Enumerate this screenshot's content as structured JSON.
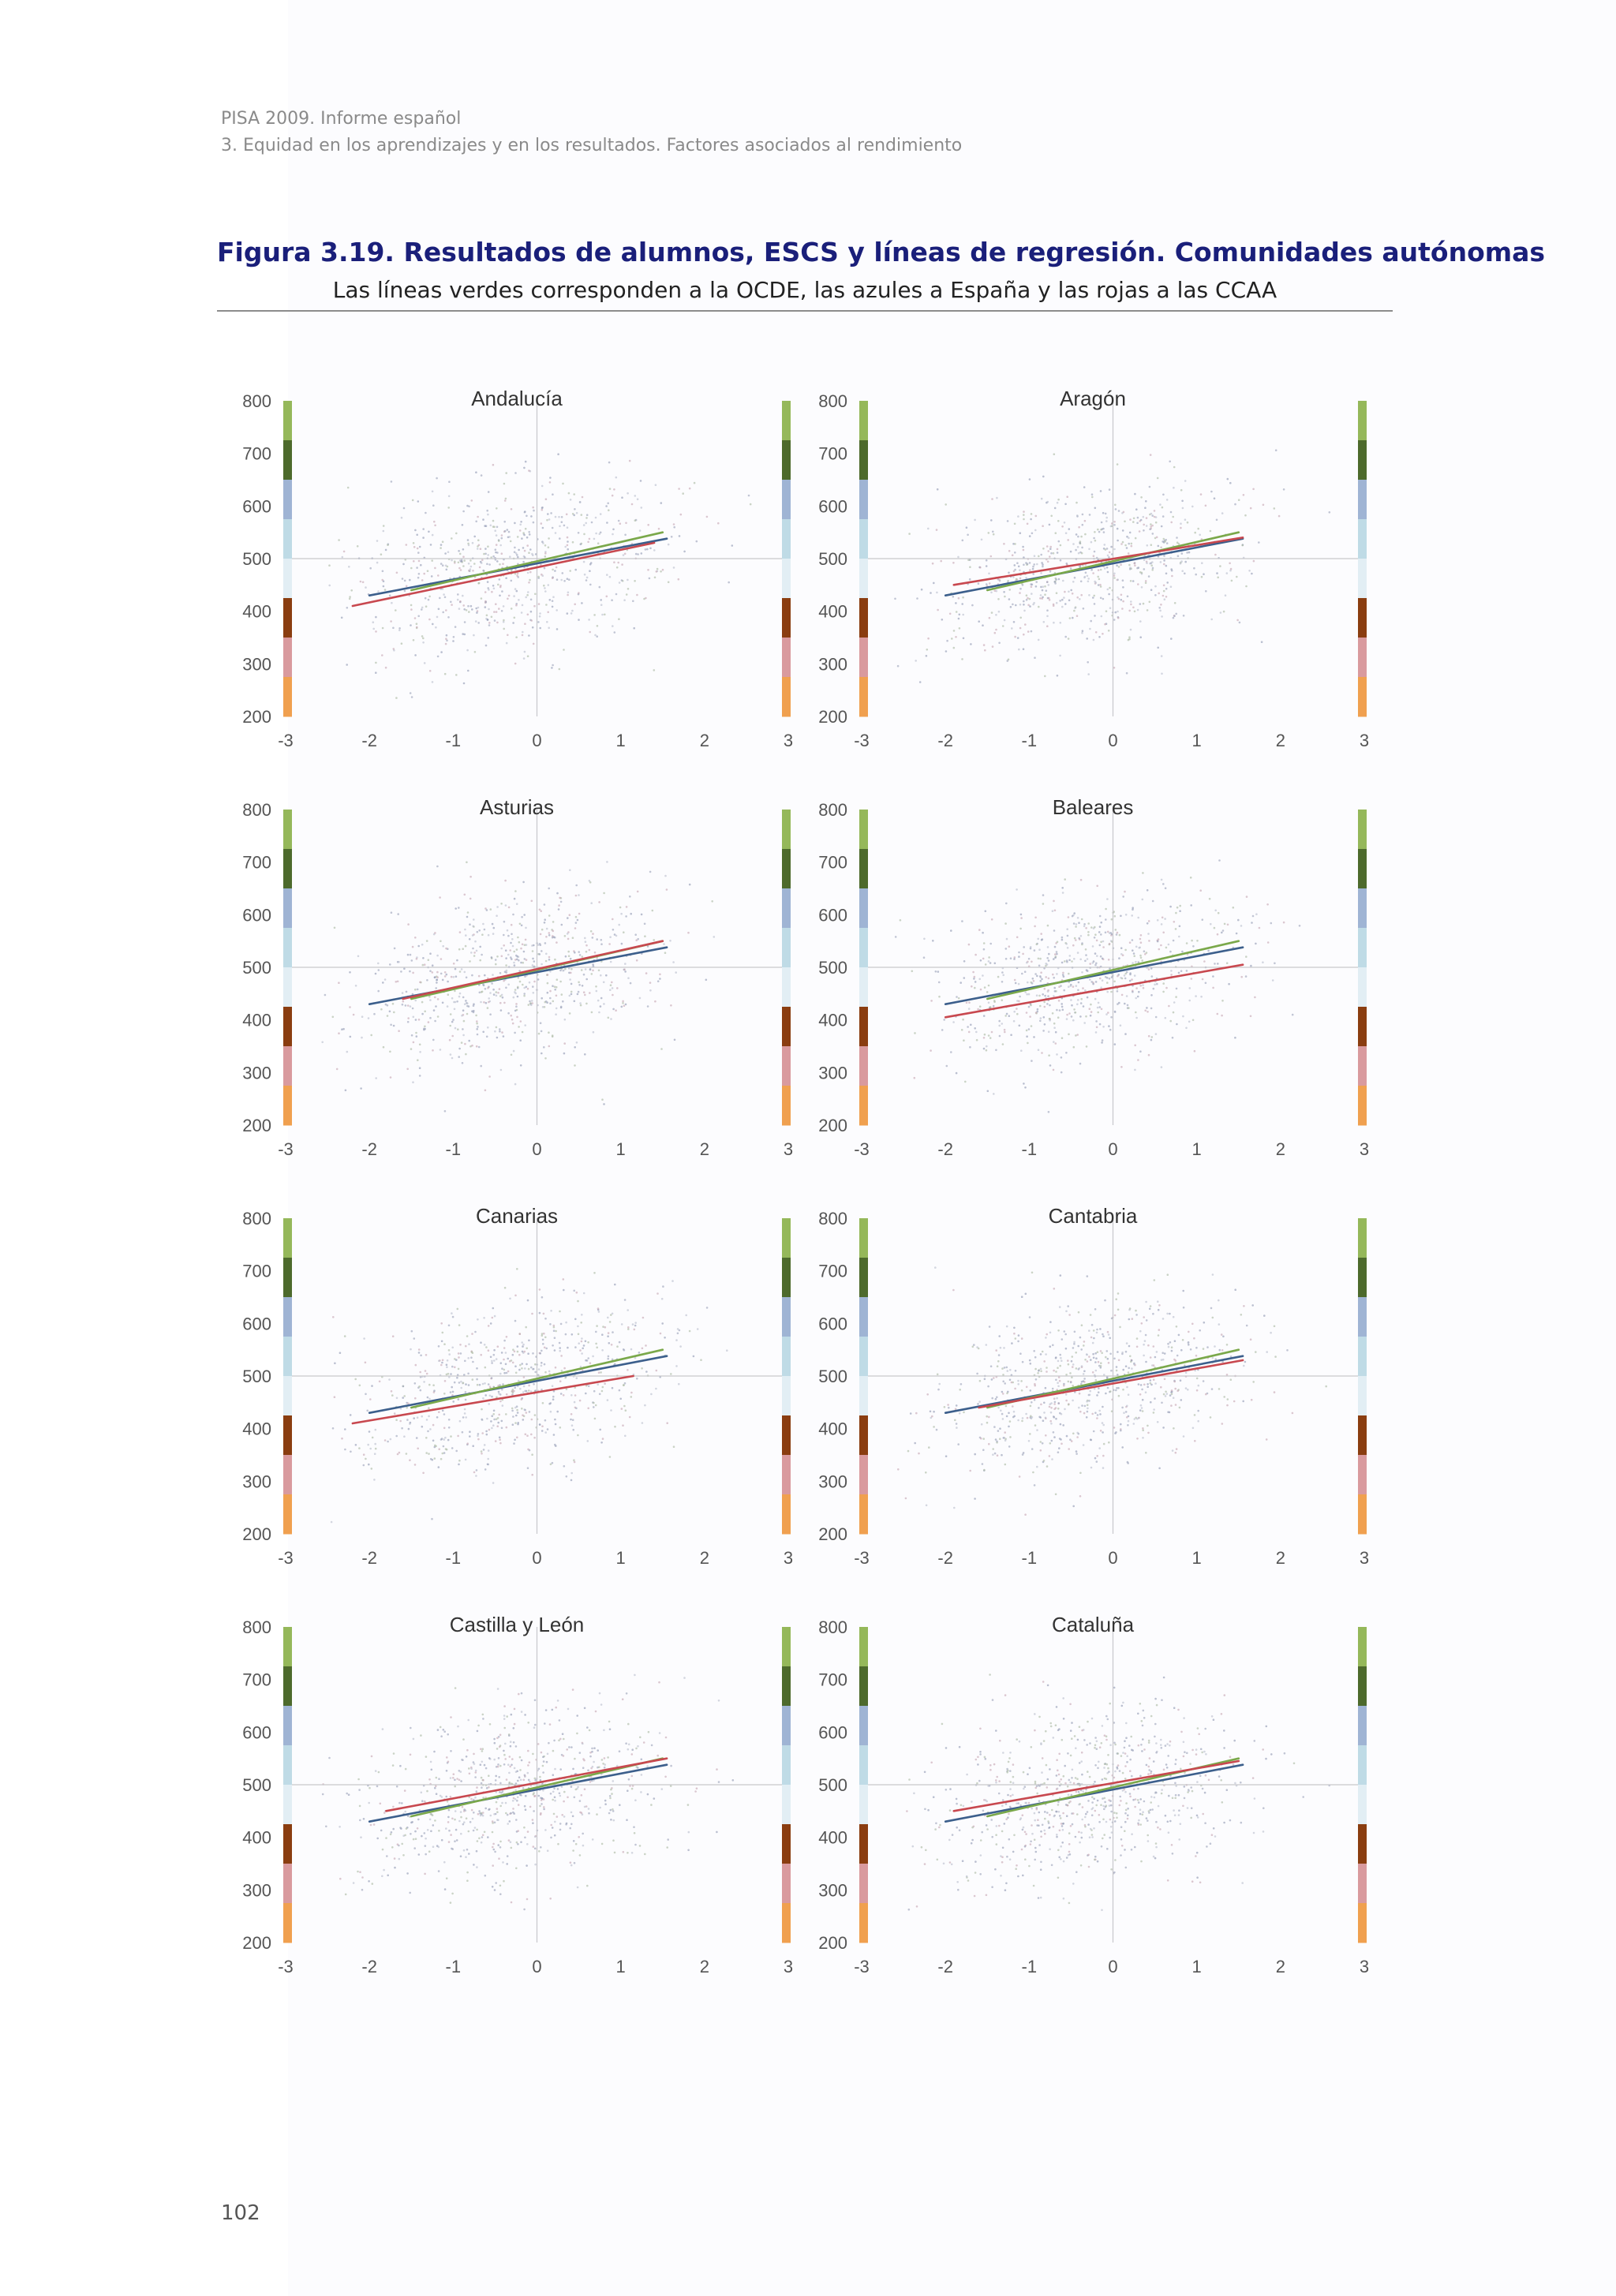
{
  "header": {
    "line1": "PISA 2009. Informe español",
    "line2": "3. Equidad en los aprendizajes y en los resultados. Factores asociados al rendimiento"
  },
  "figure": {
    "title": "Figura 3.19. Resultados de alumnos, ESCS y líneas de regresión. Comunidades autónomas",
    "subtitle": "Las líneas verdes corresponden a la OCDE, las azules a España y las rojas a las CCAA"
  },
  "page_number": "102",
  "colors": {
    "ocde_line": "#7aa84a",
    "spain_line": "#3c5f8c",
    "ccaa_line": "#c8484f",
    "level_bands": [
      "#95b85a",
      "#4d6a2c",
      "#9fb4d4",
      "#bfdbe6",
      "#e2eef4",
      "#8a3d10",
      "#d99a9e",
      "#f0a04f"
    ]
  },
  "chart_data": [
    {
      "type": "scatter",
      "title": "Andalucía",
      "xlim": [
        -3,
        3
      ],
      "ylim": [
        200,
        800
      ],
      "x_ticks": [
        "-3",
        "-2",
        "-1",
        "0",
        "1",
        "2",
        "3"
      ],
      "y_ticks": [
        "800",
        "700",
        "600",
        "500",
        "400",
        "300",
        "200"
      ],
      "reference_lines": {
        "x": 0,
        "y": 500
      },
      "series": [
        {
          "x": [
            -2.0,
            1.55
          ],
          "y": [
            430,
            538
          ]
        },
        {
          "x": [
            -1.5,
            1.5
          ],
          "y": [
            440,
            550
          ]
        },
        {
          "x": [
            -2.2,
            1.4
          ],
          "y": [
            410,
            530
          ]
        }
      ]
    },
    {
      "type": "scatter",
      "title": "Aragón",
      "xlim": [
        -3,
        3
      ],
      "ylim": [
        200,
        800
      ],
      "x_ticks": [
        "-3",
        "-2",
        "-1",
        "0",
        "1",
        "2",
        "3"
      ],
      "y_ticks": [
        "800",
        "700",
        "600",
        "500",
        "400",
        "300",
        "200"
      ],
      "reference_lines": {
        "x": 0,
        "y": 500
      },
      "series": [
        {
          "x": [
            -2.0,
            1.55
          ],
          "y": [
            430,
            538
          ]
        },
        {
          "x": [
            -1.5,
            1.5
          ],
          "y": [
            440,
            550
          ]
        },
        {
          "x": [
            -1.9,
            1.55
          ],
          "y": [
            450,
            540
          ]
        }
      ]
    },
    {
      "type": "scatter",
      "title": "Asturias",
      "xlim": [
        -3,
        3
      ],
      "ylim": [
        200,
        800
      ],
      "x_ticks": [
        "-3",
        "-2",
        "-1",
        "0",
        "1",
        "2",
        "3"
      ],
      "y_ticks": [
        "800",
        "700",
        "600",
        "500",
        "400",
        "300",
        "200"
      ],
      "reference_lines": {
        "x": 0,
        "y": 500
      },
      "series": [
        {
          "x": [
            -2.0,
            1.55
          ],
          "y": [
            430,
            538
          ]
        },
        {
          "x": [
            -1.5,
            1.5
          ],
          "y": [
            440,
            550
          ]
        },
        {
          "x": [
            -1.6,
            1.5
          ],
          "y": [
            440,
            550
          ]
        }
      ]
    },
    {
      "type": "scatter",
      "title": "Baleares",
      "xlim": [
        -3,
        3
      ],
      "ylim": [
        200,
        800
      ],
      "x_ticks": [
        "-3",
        "-2",
        "-1",
        "0",
        "1",
        "2",
        "3"
      ],
      "y_ticks": [
        "800",
        "700",
        "600",
        "500",
        "400",
        "300",
        "200"
      ],
      "reference_lines": {
        "x": 0,
        "y": 500
      },
      "series": [
        {
          "x": [
            -2.0,
            1.55
          ],
          "y": [
            430,
            538
          ]
        },
        {
          "x": [
            -1.5,
            1.5
          ],
          "y": [
            440,
            550
          ]
        },
        {
          "x": [
            -2.0,
            1.55
          ],
          "y": [
            405,
            505
          ]
        }
      ]
    },
    {
      "type": "scatter",
      "title": "Canarias",
      "xlim": [
        -3,
        3
      ],
      "ylim": [
        200,
        800
      ],
      "x_ticks": [
        "-3",
        "-2",
        "-1",
        "0",
        "1",
        "2",
        "3"
      ],
      "y_ticks": [
        "800",
        "700",
        "600",
        "500",
        "400",
        "300",
        "200"
      ],
      "reference_lines": {
        "x": 0,
        "y": 500
      },
      "series": [
        {
          "x": [
            -2.0,
            1.55
          ],
          "y": [
            430,
            538
          ]
        },
        {
          "x": [
            -1.5,
            1.5
          ],
          "y": [
            440,
            550
          ]
        },
        {
          "x": [
            -2.2,
            1.15
          ],
          "y": [
            410,
            500
          ]
        }
      ]
    },
    {
      "type": "scatter",
      "title": "Cantabria",
      "xlim": [
        -3,
        3
      ],
      "ylim": [
        200,
        800
      ],
      "x_ticks": [
        "-3",
        "-2",
        "-1",
        "0",
        "1",
        "2",
        "3"
      ],
      "y_ticks": [
        "800",
        "700",
        "600",
        "500",
        "400",
        "300",
        "200"
      ],
      "reference_lines": {
        "x": 0,
        "y": 500
      },
      "series": [
        {
          "x": [
            -2.0,
            1.55
          ],
          "y": [
            430,
            538
          ]
        },
        {
          "x": [
            -1.5,
            1.5
          ],
          "y": [
            440,
            550
          ]
        },
        {
          "x": [
            -1.6,
            1.55
          ],
          "y": [
            440,
            530
          ]
        }
      ]
    },
    {
      "type": "scatter",
      "title": "Castilla y León",
      "xlim": [
        -3,
        3
      ],
      "ylim": [
        200,
        800
      ],
      "x_ticks": [
        "-3",
        "-2",
        "-1",
        "0",
        "1",
        "2",
        "3"
      ],
      "y_ticks": [
        "800",
        "700",
        "600",
        "500",
        "400",
        "300",
        "200"
      ],
      "reference_lines": {
        "x": 0,
        "y": 500
      },
      "series": [
        {
          "x": [
            -2.0,
            1.55
          ],
          "y": [
            430,
            538
          ]
        },
        {
          "x": [
            -1.5,
            1.5
          ],
          "y": [
            440,
            550
          ]
        },
        {
          "x": [
            -1.8,
            1.55
          ],
          "y": [
            450,
            550
          ]
        }
      ]
    },
    {
      "type": "scatter",
      "title": "Cataluña",
      "xlim": [
        -3,
        3
      ],
      "ylim": [
        200,
        800
      ],
      "x_ticks": [
        "-3",
        "-2",
        "-1",
        "0",
        "1",
        "2",
        "3"
      ],
      "y_ticks": [
        "800",
        "700",
        "600",
        "500",
        "400",
        "300",
        "200"
      ],
      "reference_lines": {
        "x": 0,
        "y": 500
      },
      "series": [
        {
          "x": [
            -2.0,
            1.55
          ],
          "y": [
            430,
            538
          ]
        },
        {
          "x": [
            -1.5,
            1.5
          ],
          "y": [
            440,
            550
          ]
        },
        {
          "x": [
            -1.9,
            1.5
          ],
          "y": [
            450,
            545
          ]
        }
      ]
    }
  ]
}
